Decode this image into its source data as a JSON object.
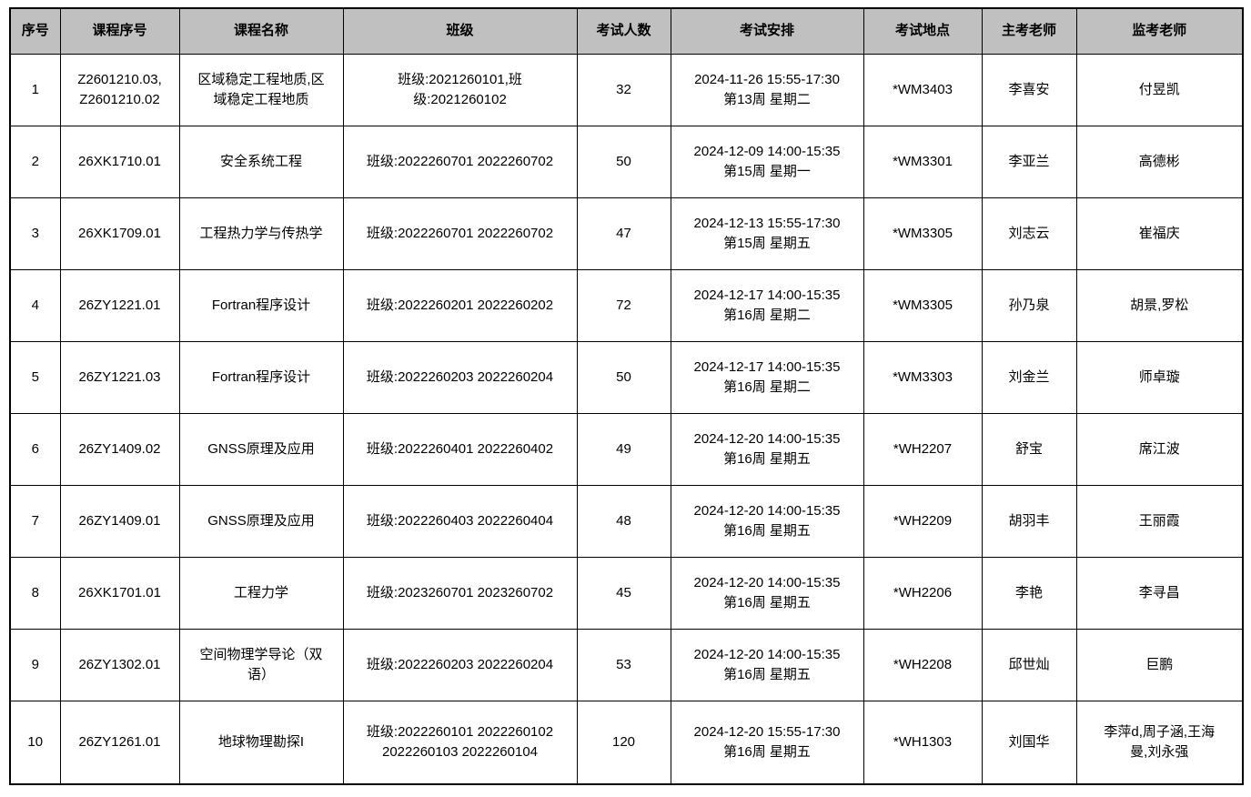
{
  "colors": {
    "header_bg": "#c0c0c0",
    "border": "#000000",
    "text": "#000000",
    "body_bg": "#ffffff"
  },
  "table": {
    "columns": [
      {
        "key": "index",
        "label": "序号"
      },
      {
        "key": "course_code",
        "label": "课程序号"
      },
      {
        "key": "course_name",
        "label": "课程名称"
      },
      {
        "key": "classes",
        "label": "班级"
      },
      {
        "key": "exam_count",
        "label": "考试人数"
      },
      {
        "key": "exam_schedule",
        "label": "考试安排"
      },
      {
        "key": "exam_location",
        "label": "考试地点"
      },
      {
        "key": "chief_teacher",
        "label": "主考老师"
      },
      {
        "key": "proctor_teacher",
        "label": "监考老师"
      }
    ],
    "rows": [
      [
        "1",
        "Z2601210.03,\nZ2601210.02",
        "区域稳定工程地质,区\n域稳定工程地质",
        "班级:2021260101,班\n级:2021260102",
        "32",
        "2024-11-26 15:55-17:30\n第13周 星期二",
        "*WM3403",
        "李喜安",
        "付昱凯"
      ],
      [
        "2",
        "26XK1710.01",
        "安全系统工程",
        "班级:2022260701 2022260702",
        "50",
        "2024-12-09 14:00-15:35\n第15周 星期一",
        "*WM3301",
        "李亚兰",
        "高德彬"
      ],
      [
        "3",
        "26XK1709.01",
        "工程热力学与传热学",
        "班级:2022260701 2022260702",
        "47",
        "2024-12-13 15:55-17:30\n第15周 星期五",
        "*WM3305",
        "刘志云",
        "崔福庆"
      ],
      [
        "4",
        "26ZY1221.01",
        "Fortran程序设计",
        "班级:2022260201 2022260202",
        "72",
        "2024-12-17 14:00-15:35\n第16周 星期二",
        "*WM3305",
        "孙乃泉",
        "胡景,罗松"
      ],
      [
        "5",
        "26ZY1221.03",
        "Fortran程序设计",
        "班级:2022260203 2022260204",
        "50",
        "2024-12-17 14:00-15:35\n第16周 星期二",
        "*WM3303",
        "刘金兰",
        "师卓璇"
      ],
      [
        "6",
        "26ZY1409.02",
        "GNSS原理及应用",
        "班级:2022260401 2022260402",
        "49",
        "2024-12-20 14:00-15:35\n第16周 星期五",
        "*WH2207",
        "舒宝",
        "席江波"
      ],
      [
        "7",
        "26ZY1409.01",
        "GNSS原理及应用",
        "班级:2022260403 2022260404",
        "48",
        "2024-12-20 14:00-15:35\n第16周 星期五",
        "*WH2209",
        "胡羽丰",
        "王丽霞"
      ],
      [
        "8",
        "26XK1701.01",
        "工程力学",
        "班级:2023260701 2023260702",
        "45",
        "2024-12-20 14:00-15:35\n第16周 星期五",
        "*WH2206",
        "李艳",
        "李寻昌"
      ],
      [
        "9",
        "26ZY1302.01",
        "空间物理学导论（双\n语）",
        "班级:2022260203 2022260204",
        "53",
        "2024-12-20 14:00-15:35\n第16周 星期五",
        "*WH2208",
        "邱世灿",
        "巨鹏"
      ],
      [
        "10",
        "26ZY1261.01",
        "地球物理勘探I",
        "班级:2022260101 2022260102\n2022260103 2022260104",
        "120",
        "2024-12-20 15:55-17:30\n第16周 星期五",
        "*WH1303",
        "刘国华",
        "李萍d,周子涵,王海\n曼,刘永强"
      ]
    ]
  }
}
